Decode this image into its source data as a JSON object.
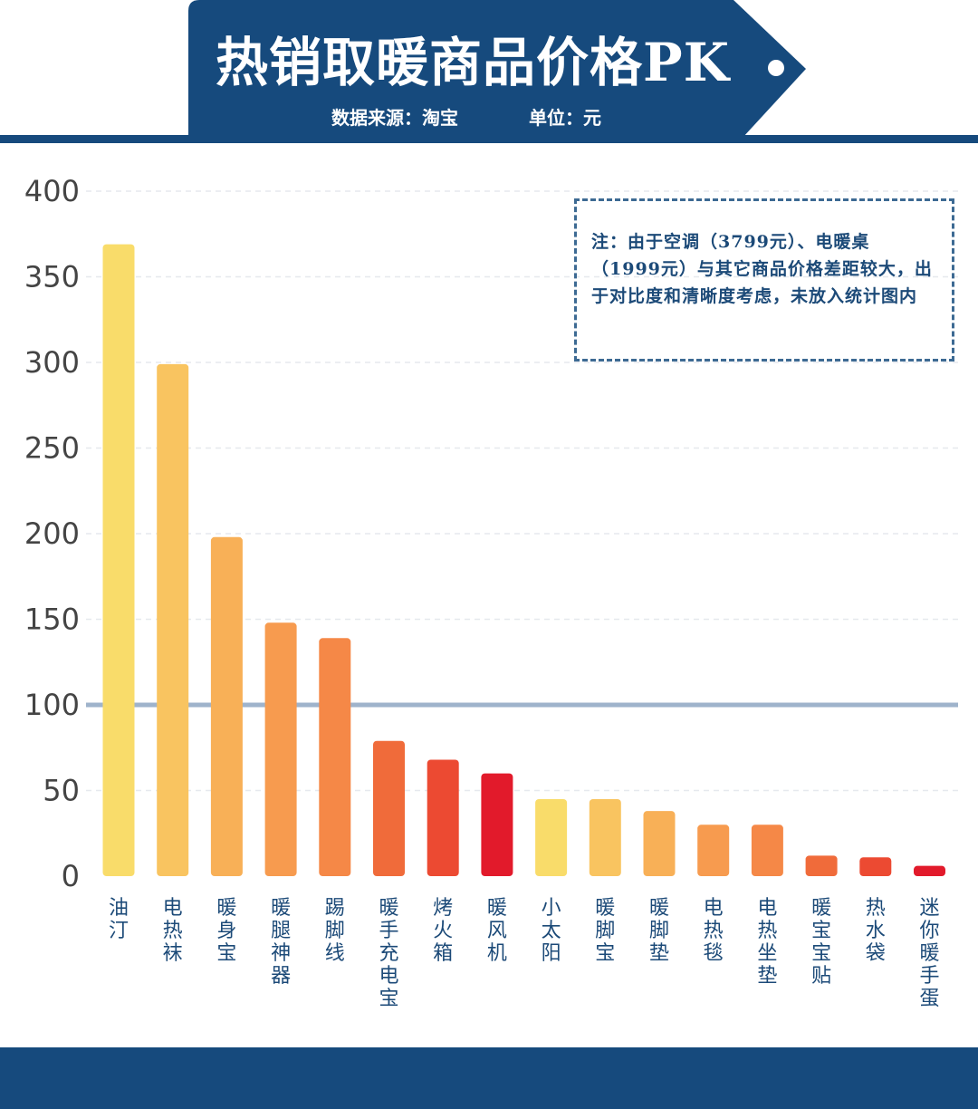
{
  "header": {
    "title": "热销取暖商品价格PK",
    "source": "数据来源：淘宝",
    "unit": "单位：元"
  },
  "note": "注：由于空调（3799元）、电暖桌（1999元）与其它商品价格差距较大，出于对比度和清晰度考虑，未放入统计图内",
  "colors": {
    "brand": "#164a7d",
    "bars": [
      "#f9dc6a",
      "#f9c460",
      "#f8b057",
      "#f79b4f",
      "#f58847",
      "#f06b3a",
      "#ec4a32",
      "#e21a2b"
    ]
  },
  "chart_data": {
    "type": "bar",
    "title": "热销取暖商品价格PK",
    "xlabel": "",
    "ylabel": "",
    "ylim": [
      0,
      400
    ],
    "yticks": [
      0,
      50,
      100,
      150,
      200,
      250,
      300,
      350,
      400
    ],
    "reference_line": 100,
    "grid": true,
    "categories": [
      "油汀",
      "电热袜",
      "暖身宝",
      "暖腿神器",
      "踢脚线",
      "暖手充电宝",
      "烤火箱",
      "暖风机",
      "小太阳",
      "暖脚宝",
      "暖脚垫",
      "电热毯",
      "电热坐垫",
      "暖宝宝贴",
      "热水袋",
      "迷你暖手蛋"
    ],
    "values": [
      369,
      299,
      198,
      148,
      139,
      79,
      68,
      60,
      45,
      45,
      38,
      30,
      30,
      12,
      11,
      6
    ]
  }
}
